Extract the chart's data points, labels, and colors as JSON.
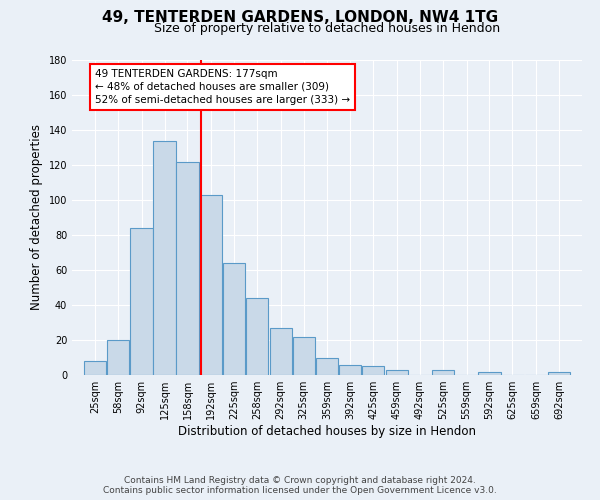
{
  "title_line1": "49, TENTERDEN GARDENS, LONDON, NW4 1TG",
  "title_line2": "Size of property relative to detached houses in Hendon",
  "xlabel": "Distribution of detached houses by size in Hendon",
  "ylabel": "Number of detached properties",
  "bar_labels": [
    "25sqm",
    "58sqm",
    "92sqm",
    "125sqm",
    "158sqm",
    "192sqm",
    "225sqm",
    "258sqm",
    "292sqm",
    "325sqm",
    "359sqm",
    "392sqm",
    "425sqm",
    "459sqm",
    "492sqm",
    "525sqm",
    "559sqm",
    "592sqm",
    "625sqm",
    "659sqm",
    "692sqm"
  ],
  "bar_values": [
    8,
    20,
    84,
    134,
    122,
    103,
    64,
    44,
    27,
    22,
    10,
    6,
    5,
    3,
    0,
    3,
    0,
    2,
    0,
    0,
    2
  ],
  "bar_color": "#c9d9e8",
  "bar_edgecolor": "#5a9ac8",
  "vline_x": 177,
  "vline_color": "red",
  "annotation_text": "49 TENTERDEN GARDENS: 177sqm\n← 48% of detached houses are smaller (309)\n52% of semi-detached houses are larger (333) →",
  "annotation_box_color": "white",
  "annotation_box_edgecolor": "red",
  "ylim": [
    0,
    180
  ],
  "yticks": [
    0,
    20,
    40,
    60,
    80,
    100,
    120,
    140,
    160,
    180
  ],
  "footer_line1": "Contains HM Land Registry data © Crown copyright and database right 2024.",
  "footer_line2": "Contains public sector information licensed under the Open Government Licence v3.0.",
  "bg_color": "#eaf0f7",
  "plot_bg_color": "#eaf0f7",
  "bin_width": 33
}
